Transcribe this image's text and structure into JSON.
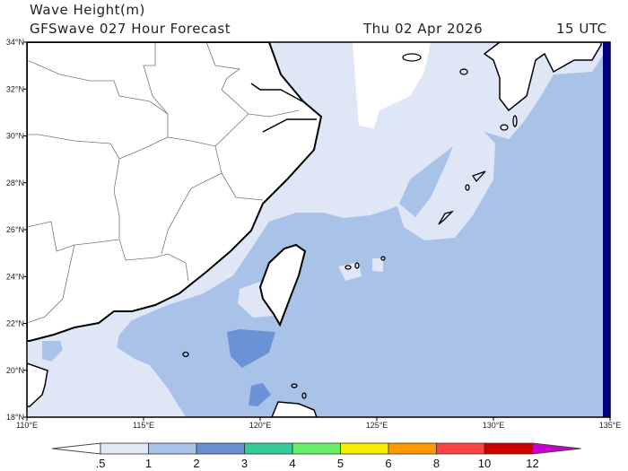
{
  "header": {
    "variable": "Wave Height(m)",
    "model_forecast": "GFSwave 027 Hour Forecast",
    "date": "Thu 02 Apr 2026",
    "time": "15 UTC"
  },
  "map": {
    "lon_range": [
      110,
      135
    ],
    "lat_range": [
      18,
      34
    ],
    "lon_labels": [
      "110°E",
      "115°E",
      "120°E",
      "125°E",
      "130°E",
      "135°E"
    ],
    "lat_labels": [
      "18°N",
      "20°N",
      "22°N",
      "24°N",
      "26°N",
      "28°N",
      "30°N",
      "32°N",
      "34°N"
    ],
    "colors": {
      "land": "#ffffff",
      "below_0_5": "#ffffff",
      "0_5_to_1": "#dfe6f6",
      "1_to_2": "#a9c2e7",
      "2_to_3": "#6b92d4",
      "edge": "#000080"
    }
  },
  "colorbar": {
    "labels": [
      ".5",
      "1",
      "2",
      "3",
      "4",
      "5",
      "6",
      "8",
      "10",
      "12"
    ],
    "colors": [
      "#e4e9f7",
      "#a9c2e7",
      "#6890d0",
      "#33cc99",
      "#66ee66",
      "#f5f000",
      "#ff9900",
      "#ff4444",
      "#cc0000"
    ],
    "under_color": "#ffffff",
    "over_color": "#cc00cc"
  }
}
